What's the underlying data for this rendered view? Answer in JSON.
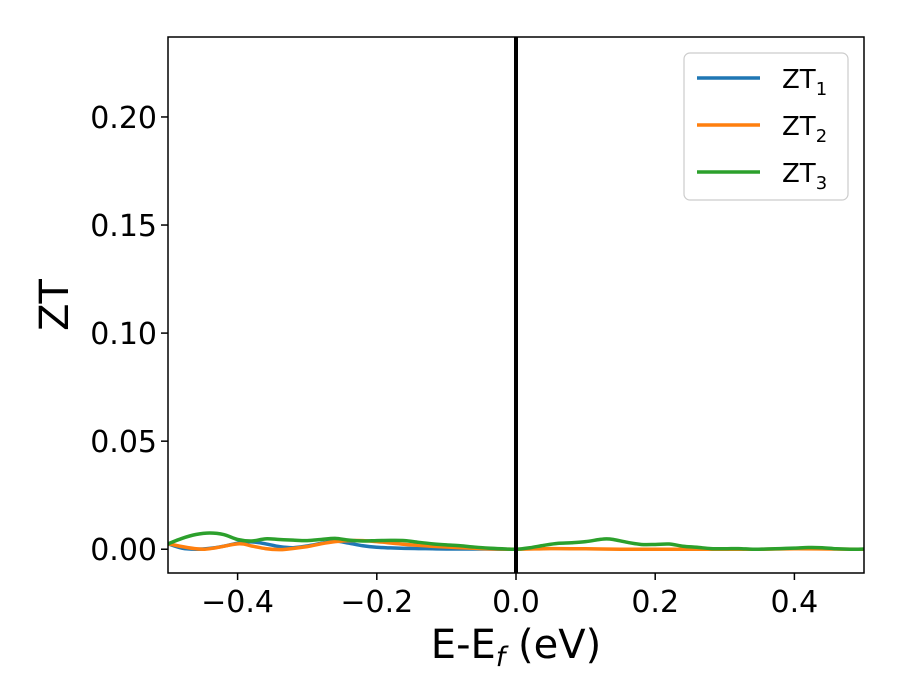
{
  "chart_data": {
    "type": "line",
    "xlabel": "E-E",
    "xlabel_sub": "f",
    "xlabel_units": "(eV)",
    "ylabel": "ZT",
    "xlim": [
      -0.5,
      0.5
    ],
    "ylim": [
      -0.011,
      0.237
    ],
    "xticks": [
      -0.4,
      -0.2,
      0.0,
      0.2,
      0.4
    ],
    "xtick_labels": [
      "−0.4",
      "−0.2",
      "0.0",
      "0.2",
      "0.4"
    ],
    "yticks": [
      0.0,
      0.05,
      0.1,
      0.15,
      0.2
    ],
    "ytick_labels": [
      "0.00",
      "0.05",
      "0.10",
      "0.15",
      "0.20"
    ],
    "vline_x": 0.0,
    "vline_color": "#000000",
    "grid": false,
    "legend_position": "top-right",
    "series": [
      {
        "name": "ZT",
        "name_sub": "1",
        "color": "#1f77b4",
        "x": [
          -0.5,
          -0.48,
          -0.46,
          -0.44,
          -0.42,
          -0.4,
          -0.38,
          -0.36,
          -0.34,
          -0.32,
          -0.3,
          -0.28,
          -0.26,
          -0.24,
          -0.22,
          -0.2,
          -0.18,
          -0.16,
          -0.14,
          -0.12,
          -0.1,
          -0.08,
          -0.06,
          -0.04,
          -0.02,
          0.0
        ],
        "y": [
          0.0025,
          0.0005,
          0.0,
          0.0004,
          0.0014,
          0.0028,
          0.0034,
          0.0025,
          0.0012,
          0.0007,
          0.0015,
          0.0027,
          0.0038,
          0.0028,
          0.0016,
          0.0009,
          0.0006,
          0.0004,
          0.0003,
          0.0002,
          0.0001,
          0.0001,
          0.0001,
          0.0001,
          0.0,
          0.0
        ]
      },
      {
        "name": "ZT",
        "name_sub": "2",
        "color": "#ff7f0e",
        "x": [
          -0.5,
          -0.45,
          -0.4,
          -0.38,
          -0.36,
          -0.34,
          -0.33,
          -0.3,
          -0.28,
          -0.26,
          -0.24,
          -0.22,
          -0.2,
          -0.15,
          -0.1,
          -0.05,
          0.0,
          0.05,
          0.1,
          0.15,
          0.2,
          0.25,
          0.3,
          0.35,
          0.4,
          0.45,
          0.5
        ],
        "y": [
          0.0025,
          0.0,
          0.0025,
          0.0015,
          0.0003,
          -0.0002,
          0.0,
          0.0012,
          0.0025,
          0.0035,
          0.004,
          0.004,
          0.0035,
          0.002,
          0.001,
          0.0003,
          0.0,
          0.0003,
          0.0002,
          0.0,
          0.0,
          0.0,
          0.0,
          0.0,
          0.0002,
          0.0001,
          0.0
        ]
      },
      {
        "name": "ZT",
        "name_sub": "3",
        "color": "#2ca02c",
        "x": [
          -0.5,
          -0.48,
          -0.46,
          -0.44,
          -0.42,
          -0.4,
          -0.38,
          -0.36,
          -0.34,
          -0.32,
          -0.3,
          -0.28,
          -0.26,
          -0.24,
          -0.22,
          -0.2,
          -0.18,
          -0.16,
          -0.14,
          -0.12,
          -0.1,
          -0.08,
          -0.06,
          -0.04,
          -0.02,
          0.0,
          0.02,
          0.04,
          0.06,
          0.08,
          0.1,
          0.12,
          0.13,
          0.14,
          0.16,
          0.18,
          0.2,
          0.22,
          0.24,
          0.26,
          0.28,
          0.3,
          0.32,
          0.34,
          0.36,
          0.38,
          0.4,
          0.42,
          0.44,
          0.46,
          0.48,
          0.5
        ],
        "y": [
          0.0025,
          0.005,
          0.0068,
          0.0075,
          0.0068,
          0.0045,
          0.0038,
          0.0048,
          0.0045,
          0.0042,
          0.004,
          0.0045,
          0.005,
          0.0042,
          0.0038,
          0.004,
          0.0041,
          0.004,
          0.0032,
          0.0025,
          0.002,
          0.0016,
          0.001,
          0.0005,
          0.0002,
          0.0,
          0.0007,
          0.0018,
          0.0027,
          0.003,
          0.0035,
          0.0045,
          0.0048,
          0.0045,
          0.0032,
          0.0022,
          0.0022,
          0.0024,
          0.0014,
          0.0009,
          0.0003,
          0.0002,
          0.0003,
          0.0,
          0.0001,
          0.0003,
          0.0005,
          0.0008,
          0.0007,
          0.0002,
          0.0,
          0.0001
        ]
      }
    ]
  }
}
